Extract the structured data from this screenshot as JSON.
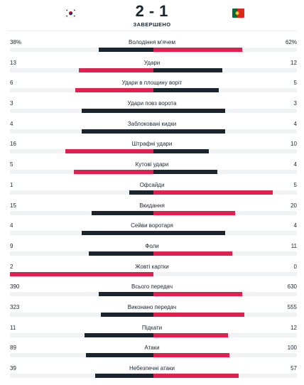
{
  "match": {
    "home_flag": "south-korea-flag",
    "away_flag": "portugal-flag",
    "home_score": "2",
    "separator": "-",
    "away_score": "1",
    "status": "ЗАВЕРШЕНО"
  },
  "colors": {
    "leader": "#e0204f",
    "trailer": "#1b2530",
    "track": "#f1f2f4"
  },
  "stats": [
    {
      "label": "Володіння м'ячем",
      "home": "38%",
      "away": "62%",
      "home_value": 38,
      "away_value": 62
    },
    {
      "label": "Удари",
      "home": "13",
      "away": "12",
      "home_value": 13,
      "away_value": 12
    },
    {
      "label": "Удари в площину воріт",
      "home": "6",
      "away": "5",
      "home_value": 6,
      "away_value": 5
    },
    {
      "label": "Удари повз ворота",
      "home": "3",
      "away": "3",
      "home_value": 3,
      "away_value": 3
    },
    {
      "label": "Заблоковані кидки",
      "home": "4",
      "away": "4",
      "home_value": 4,
      "away_value": 4
    },
    {
      "label": "Штрафні удари",
      "home": "16",
      "away": "10",
      "home_value": 16,
      "away_value": 10
    },
    {
      "label": "Кутові удари",
      "home": "5",
      "away": "4",
      "home_value": 5,
      "away_value": 4
    },
    {
      "label": "Офсайди",
      "home": "1",
      "away": "5",
      "home_value": 1,
      "away_value": 5
    },
    {
      "label": "Вкидання",
      "home": "15",
      "away": "20",
      "home_value": 15,
      "away_value": 20
    },
    {
      "label": "Сейви воротаря",
      "home": "4",
      "away": "4",
      "home_value": 4,
      "away_value": 4
    },
    {
      "label": "Фоли",
      "home": "9",
      "away": "11",
      "home_value": 9,
      "away_value": 11
    },
    {
      "label": "Жовті картки",
      "home": "2",
      "away": "0",
      "home_value": 2,
      "away_value": 0
    },
    {
      "label": "Всього передач",
      "home": "390",
      "away": "630",
      "home_value": 390,
      "away_value": 630
    },
    {
      "label": "Виконано передач",
      "home": "323",
      "away": "555",
      "home_value": 323,
      "away_value": 555
    },
    {
      "label": "Підкати",
      "home": "11",
      "away": "12",
      "home_value": 11,
      "away_value": 12
    },
    {
      "label": "Атаки",
      "home": "89",
      "away": "100",
      "home_value": 89,
      "away_value": 100
    },
    {
      "label": "Небезпечні атаки",
      "home": "39",
      "away": "57",
      "home_value": 39,
      "away_value": 57
    }
  ]
}
